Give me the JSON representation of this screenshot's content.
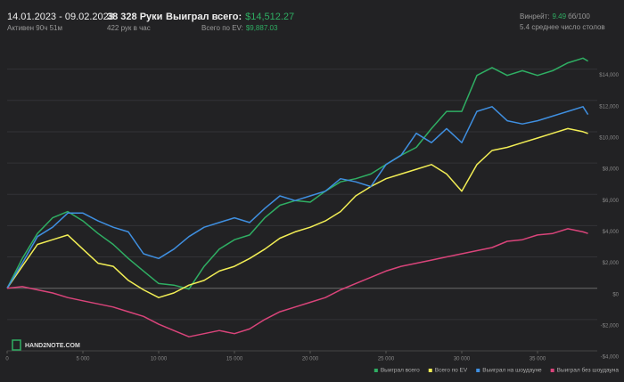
{
  "header": {
    "date_range": "14.01.2023 - 09.02.2023",
    "active": "Активен 90ч 51м",
    "hands": "38 328 Руки",
    "hands_per_hour": "422 рук в час",
    "won_label": "Выиграл всего:",
    "won_value": "$14,512.27",
    "ev_label": "Всего по EV:",
    "ev_value": "$9,887.03",
    "winrate_label": "Винрейт:",
    "winrate_value": "9.49",
    "winrate_unit": "бб/100",
    "tables": "5.4 среднее число столов"
  },
  "logo": "HAND2NOTE.COM",
  "chart_data": {
    "type": "line",
    "legend": "bottom-right",
    "grid": true,
    "x": [
      0,
      1000,
      2000,
      3000,
      4000,
      5000,
      6000,
      7000,
      8000,
      9000,
      10000,
      11000,
      12000,
      13000,
      14000,
      15000,
      16000,
      17000,
      18000,
      19000,
      20000,
      21000,
      22000,
      23000,
      24000,
      25000,
      26000,
      27000,
      28000,
      29000,
      30000,
      31000,
      32000,
      33000,
      34000,
      35000,
      36000,
      37000,
      38000,
      38328
    ],
    "xlim": [
      0,
      38500
    ],
    "xticks": [
      0,
      {
        "value": 5000,
        "label": "5 000"
      },
      {
        "value": 10000,
        "label": "10 000"
      },
      {
        "value": 15000,
        "label": "15 000"
      },
      {
        "value": 20000,
        "label": "20 000"
      },
      {
        "value": 25000,
        "label": "25 000"
      },
      {
        "value": 30000,
        "label": "30 000"
      },
      {
        "value": 35000,
        "label": "35 000"
      }
    ],
    "ylim": [
      -4000,
      15800
    ],
    "yticks": [
      {
        "value": -4000,
        "label": "-$4,000"
      },
      {
        "value": -2000,
        "label": "-$2,000"
      },
      {
        "value": 0,
        "label": "$0"
      },
      {
        "value": 2000,
        "label": "$2,000"
      },
      {
        "value": 4000,
        "label": "$4,000"
      },
      {
        "value": 6000,
        "label": "$6,000"
      },
      {
        "value": 8000,
        "label": "$8,000"
      },
      {
        "value": 10000,
        "label": "$10,000"
      },
      {
        "value": 12000,
        "label": "$12,000"
      },
      {
        "value": 14000,
        "label": "$14,000"
      }
    ],
    "series": [
      {
        "name": "Выиграл всего",
        "color": "#2fae63",
        "values": [
          0,
          1900,
          3500,
          4500,
          4900,
          4300,
          3500,
          2800,
          1900,
          1100,
          300,
          200,
          -50,
          1400,
          2500,
          3100,
          3400,
          4500,
          5300,
          5600,
          5500,
          6200,
          6800,
          7000,
          7300,
          7900,
          8500,
          9000,
          10200,
          11300,
          11300,
          13600,
          14100,
          13600,
          13900,
          13600,
          13900,
          14400,
          14700,
          14512
        ]
      },
      {
        "name": "Всего по EV",
        "color": "#f2ee55",
        "values": [
          0,
          1400,
          2800,
          3100,
          3400,
          2500,
          1600,
          1400,
          500,
          -100,
          -600,
          -300,
          200,
          500,
          1100,
          1400,
          1900,
          2500,
          3200,
          3600,
          3900,
          4300,
          4900,
          5900,
          6500,
          7000,
          7300,
          7600,
          7900,
          7300,
          6200,
          7900,
          8800,
          9000,
          9300,
          9600,
          9900,
          10200,
          10000,
          9887
        ]
      },
      {
        "name": "Выиграл на шоудауне",
        "color": "#3f8fe0",
        "values": [
          0,
          1600,
          3300,
          3900,
          4800,
          4800,
          4300,
          3900,
          3600,
          2200,
          1900,
          2500,
          3300,
          3900,
          4200,
          4500,
          4200,
          5100,
          5900,
          5600,
          5900,
          6200,
          7000,
          6800,
          6500,
          7900,
          8500,
          9900,
          9300,
          10200,
          9300,
          11300,
          11600,
          10700,
          10500,
          10700,
          11000,
          11300,
          11600,
          11100
        ]
      },
      {
        "name": "Выиграл без шоудауна",
        "color": "#d9447a",
        "values": [
          0,
          100,
          -100,
          -300,
          -600,
          -800,
          -1000,
          -1200,
          -1500,
          -1800,
          -2300,
          -2700,
          -3100,
          -2900,
          -2700,
          -2900,
          -2600,
          -2000,
          -1500,
          -1200,
          -900,
          -600,
          -100,
          300,
          700,
          1100,
          1400,
          1600,
          1800,
          2000,
          2200,
          2400,
          2600,
          3000,
          3100,
          3400,
          3500,
          3800,
          3600,
          3500
        ]
      }
    ]
  }
}
